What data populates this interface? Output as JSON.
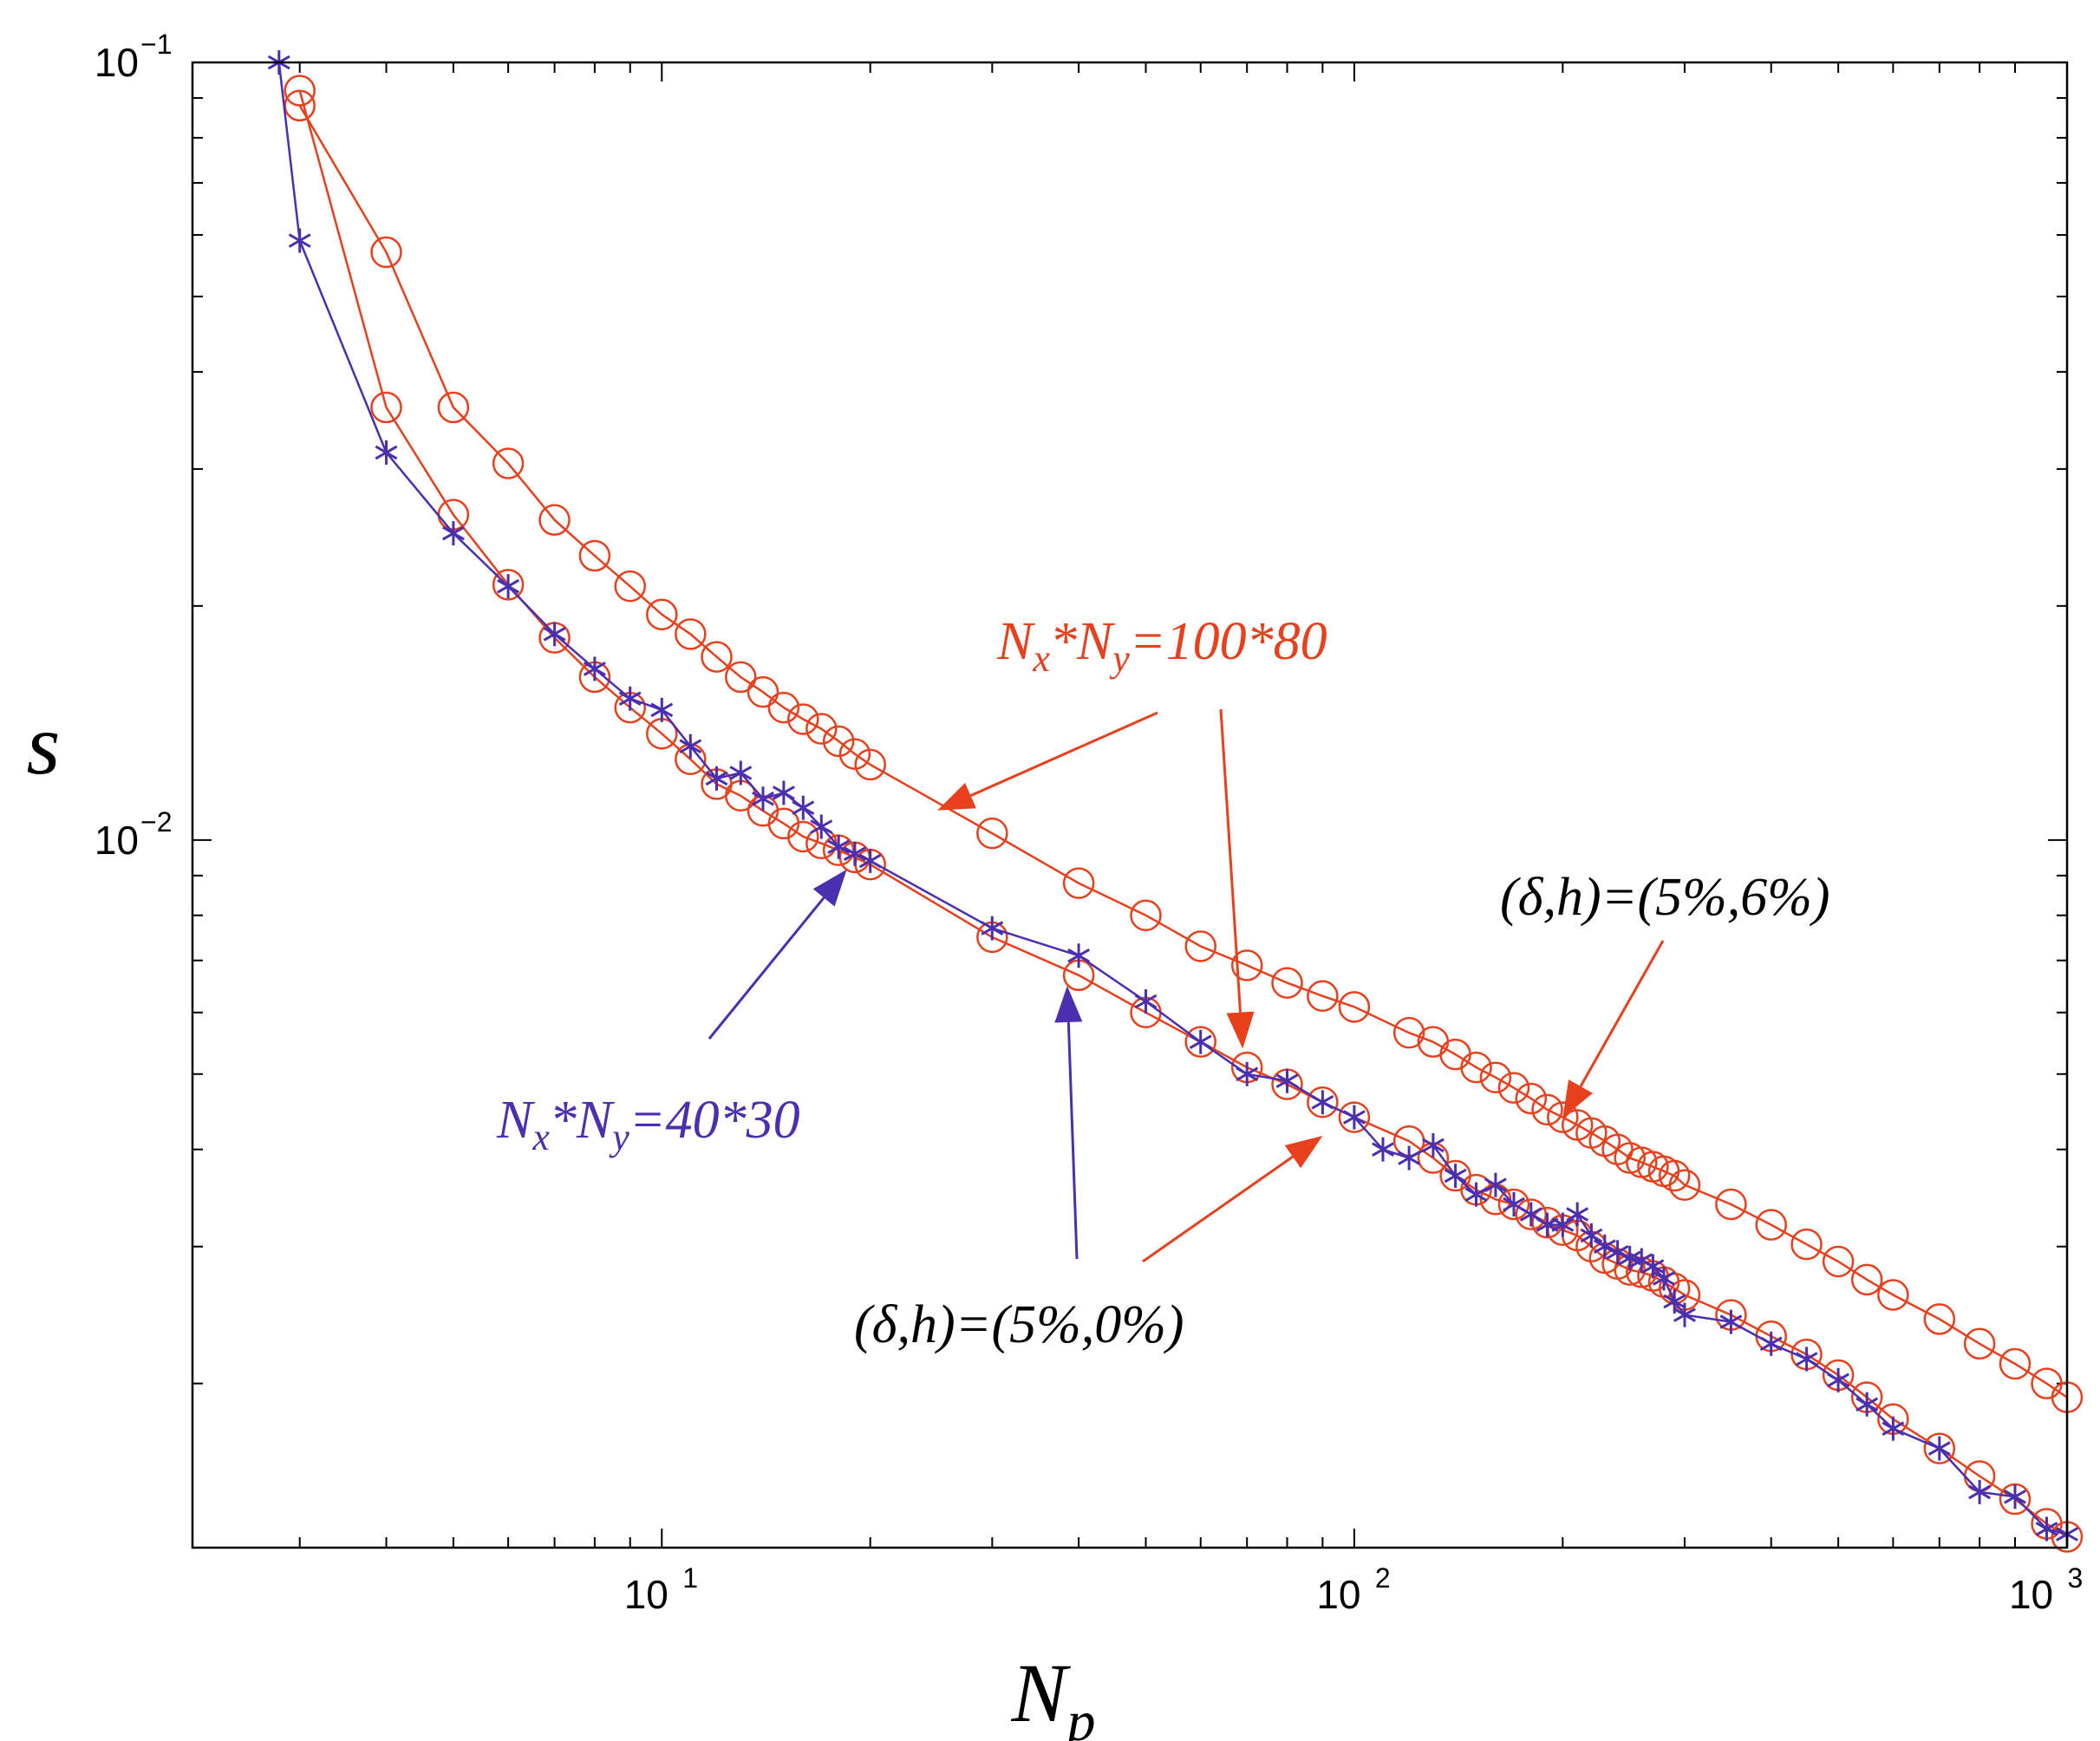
{
  "chart_data": {
    "type": "line",
    "scale": {
      "x": "log",
      "y": "log"
    },
    "xlabel": "N_p",
    "ylabel": "s",
    "xlim": [
      2.1,
      1070
    ],
    "ylim": [
      0.00123,
      0.1
    ],
    "x_ticks": [
      {
        "value": 10,
        "base": "10",
        "exp": "1"
      },
      {
        "value": 100,
        "base": "10",
        "exp": "2"
      },
      {
        "value": 1000,
        "base": "10",
        "exp": "3"
      }
    ],
    "y_ticks": [
      {
        "value": 0.01,
        "base": "10",
        "exp": "−2"
      },
      {
        "value": 0.1,
        "base": "10",
        "exp": "−1"
      }
    ],
    "series": [
      {
        "name": "Nx*Ny=100*80, (δ,h)=(5%,6%)",
        "color": "#e8401c",
        "marker": "circle",
        "x": [
          3,
          4,
          5,
          6,
          7,
          8,
          9,
          10,
          11,
          12,
          13,
          14,
          15,
          16,
          17,
          18,
          19,
          20,
          30,
          40,
          50,
          60,
          70,
          80,
          90,
          100,
          120,
          130,
          140,
          150,
          160,
          170,
          180,
          190,
          200,
          210,
          220,
          230,
          240,
          250,
          260,
          270,
          280,
          290,
          300,
          350,
          400,
          450,
          500,
          550,
          600,
          700,
          800,
          900,
          1000,
          1070
        ],
        "y": [
          0.088,
          0.057,
          0.036,
          0.0305,
          0.0258,
          0.0232,
          0.0212,
          0.0195,
          0.0184,
          0.0172,
          0.0162,
          0.0155,
          0.0148,
          0.0143,
          0.0139,
          0.0134,
          0.0129,
          0.0125,
          0.0102,
          0.0088,
          0.008,
          0.0073,
          0.0069,
          0.00655,
          0.0063,
          0.0061,
          0.00565,
          0.0055,
          0.0053,
          0.0051,
          0.00495,
          0.0048,
          0.00465,
          0.0045,
          0.0044,
          0.0043,
          0.0042,
          0.0041,
          0.004,
          0.0039,
          0.00385,
          0.0038,
          0.00375,
          0.0037,
          0.0036,
          0.0034,
          0.0032,
          0.00302,
          0.00287,
          0.00272,
          0.0026,
          0.00242,
          0.00225,
          0.00212,
          0.002,
          0.00192
        ]
      },
      {
        "name": "Nx*Ny=100*80, (δ,h)=(5%,0%)",
        "color": "#e8401c",
        "marker": "circle",
        "x": [
          3,
          4,
          5,
          6,
          7,
          8,
          9,
          10,
          11,
          12,
          13,
          14,
          15,
          16,
          17,
          18,
          19,
          20,
          30,
          40,
          50,
          60,
          70,
          80,
          90,
          100,
          120,
          130,
          140,
          150,
          160,
          170,
          180,
          190,
          200,
          210,
          220,
          230,
          240,
          250,
          260,
          270,
          280,
          290,
          300,
          350,
          400,
          450,
          500,
          550,
          600,
          700,
          800,
          900,
          1000,
          1070
        ],
        "y": [
          0.092,
          0.036,
          0.0262,
          0.0213,
          0.0182,
          0.0162,
          0.0148,
          0.0137,
          0.0127,
          0.0118,
          0.0114,
          0.0109,
          0.0105,
          0.0101,
          0.0099,
          0.0097,
          0.0095,
          0.0093,
          0.0075,
          0.0067,
          0.006,
          0.0055,
          0.0051,
          0.00485,
          0.0046,
          0.0044,
          0.0041,
          0.0039,
          0.0037,
          0.00355,
          0.00345,
          0.0034,
          0.0033,
          0.00322,
          0.00315,
          0.0031,
          0.003,
          0.0029,
          0.00285,
          0.0028,
          0.00278,
          0.00275,
          0.0027,
          0.00265,
          0.0026,
          0.00245,
          0.0023,
          0.00218,
          0.00205,
          0.00192,
          0.0018,
          0.00165,
          0.00152,
          0.00142,
          0.00132,
          0.00127
        ]
      },
      {
        "name": "Nx*Ny=40*30",
        "color": "#4a2fb0",
        "marker": "asterisk",
        "x": [
          2.8,
          3,
          4,
          5,
          6,
          7,
          8,
          9,
          10,
          11,
          12,
          13,
          14,
          15,
          16,
          17,
          18,
          19,
          20,
          30,
          40,
          50,
          60,
          70,
          80,
          90,
          100,
          110,
          120,
          130,
          140,
          150,
          160,
          170,
          180,
          190,
          200,
          210,
          220,
          230,
          240,
          250,
          260,
          270,
          280,
          290,
          300,
          350,
          400,
          450,
          500,
          550,
          600,
          700,
          800,
          900,
          1000,
          1070
        ],
        "y": [
          0.1,
          0.059,
          0.0315,
          0.0248,
          0.0212,
          0.0184,
          0.0166,
          0.0152,
          0.0147,
          0.0132,
          0.012,
          0.0122,
          0.0113,
          0.0115,
          0.011,
          0.0104,
          0.0098,
          0.0096,
          0.0094,
          0.0077,
          0.0071,
          0.0062,
          0.0055,
          0.005,
          0.0049,
          0.0046,
          0.0044,
          0.004,
          0.0039,
          0.00405,
          0.0037,
          0.0035,
          0.0036,
          0.0034,
          0.0033,
          0.0032,
          0.0032,
          0.0033,
          0.0031,
          0.003,
          0.00295,
          0.0029,
          0.00288,
          0.00283,
          0.00273,
          0.00255,
          0.00245,
          0.0024,
          0.00225,
          0.00215,
          0.00202,
          0.00188,
          0.00175,
          0.00165,
          0.00145,
          0.00143,
          0.0013,
          0.00128
        ]
      }
    ],
    "annotations": [
      {
        "id": "label-100x80",
        "parts": [
          "N",
          "x",
          "*N",
          "y",
          "=100*80"
        ],
        "color": "#e8401c"
      },
      {
        "id": "label-40x30",
        "parts": [
          "N",
          "x",
          "*N",
          "y",
          "=40*30"
        ],
        "color": "#4a2fb0"
      },
      {
        "id": "label-6pct",
        "text": "(δ,h)=(5%,6%)",
        "color": "#000000"
      },
      {
        "id": "label-0pct",
        "text": "(δ,h)=(5%,0%)",
        "color": "#000000"
      }
    ]
  }
}
